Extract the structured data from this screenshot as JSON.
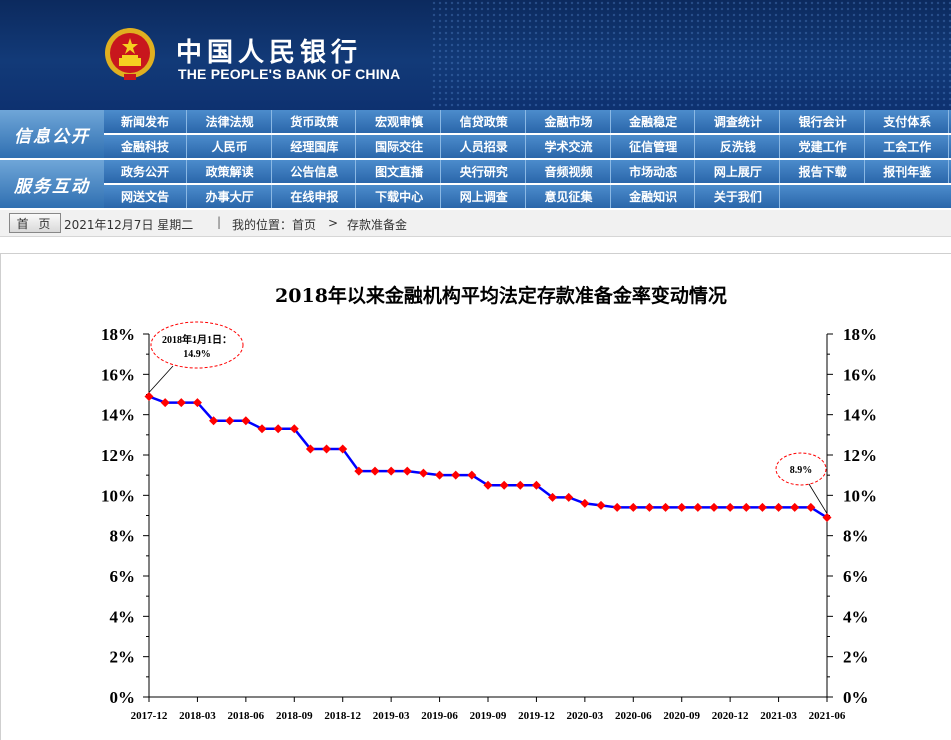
{
  "header": {
    "bank_name_cn": "中国人民银行",
    "bank_name_en": "THE PEOPLE'S BANK OF CHINA"
  },
  "nav": {
    "section1_label": "信息公开",
    "section2_label": "服务互动",
    "section1_row1": [
      "新闻发布",
      "法律法规",
      "货币政策",
      "宏观审慎",
      "信贷政策",
      "金融市场",
      "金融稳定",
      "调查统计",
      "银行会计",
      "支付体系"
    ],
    "section1_row2": [
      "金融科技",
      "人民币",
      "经理国库",
      "国际交往",
      "人员招录",
      "学术交流",
      "征信管理",
      "反洗钱",
      "党建工作",
      "工会工作"
    ],
    "section2_row1": [
      "政务公开",
      "政策解读",
      "公告信息",
      "图文直播",
      "央行研究",
      "音频视频",
      "市场动态",
      "网上展厅",
      "报告下载",
      "报刊年鉴"
    ],
    "section2_row2": [
      "网送文告",
      "办事大厅",
      "在线申报",
      "下载中心",
      "网上调查",
      "意见征集",
      "金融知识",
      "关于我们"
    ]
  },
  "breadcrumb": {
    "home_button": "首 页",
    "date": "2021年12月7日 星期二",
    "separator": "|",
    "location_label": "我的位置：首页",
    "arrow": ">",
    "current_page": "存款准备金"
  },
  "colors": {
    "header_bg": "#123a78",
    "nav_blue": "#2a66aa",
    "series_line": "#0000ff",
    "series_marker": "#ff0000",
    "annotation_ellipse": "#ff0000"
  },
  "chart_data": {
    "type": "line",
    "title": "2018年以来金融机构平均法定存款准备金率变动情况",
    "xlabel": "",
    "ylabel": "",
    "ylim": [
      0,
      18
    ],
    "y_ticks": [
      "0%",
      "2%",
      "4%",
      "6%",
      "8%",
      "10%",
      "12%",
      "14%",
      "16%",
      "18%"
    ],
    "x_ticks": [
      "2017-12",
      "2018-03",
      "2018-06",
      "2018-09",
      "2018-12",
      "2019-03",
      "2019-06",
      "2019-09",
      "2019-12",
      "2020-03",
      "2020-06",
      "2020-09",
      "2020-12",
      "2021-03",
      "2021-06"
    ],
    "grid": false,
    "dual_y_axis": true,
    "series": [
      {
        "x": [
          "2018-01",
          "2018-02",
          "2018-03",
          "2018-04",
          "2018-05",
          "2018-06",
          "2018-07",
          "2018-08",
          "2018-09",
          "2018-10",
          "2018-11",
          "2018-12",
          "2019-01",
          "2019-02",
          "2019-03",
          "2019-04",
          "2019-05",
          "2019-06",
          "2019-07",
          "2019-08",
          "2019-09",
          "2019-10",
          "2019-11",
          "2019-12",
          "2020-01",
          "2020-02",
          "2020-03",
          "2020-04",
          "2020-05",
          "2020-06",
          "2020-07",
          "2020-08",
          "2020-09",
          "2020-10",
          "2020-11",
          "2020-12",
          "2021-01",
          "2021-02",
          "2021-03",
          "2021-04",
          "2021-05",
          "2021-06",
          "2021-07"
        ],
        "values": [
          14.9,
          14.6,
          14.6,
          14.6,
          13.7,
          13.7,
          13.7,
          13.3,
          13.3,
          13.3,
          12.3,
          12.3,
          12.3,
          11.2,
          11.2,
          11.2,
          11.2,
          11.1,
          11.0,
          11.0,
          11.0,
          10.5,
          10.5,
          10.5,
          10.5,
          9.9,
          9.9,
          9.6,
          9.5,
          9.4,
          9.4,
          9.4,
          9.4,
          9.4,
          9.4,
          9.4,
          9.4,
          9.4,
          9.4,
          9.4,
          9.4,
          9.4,
          8.9
        ]
      }
    ],
    "annotations": [
      {
        "line1": "2018年1月1日：",
        "line2": "14.9%"
      },
      {
        "line1": "8.9%"
      }
    ]
  }
}
